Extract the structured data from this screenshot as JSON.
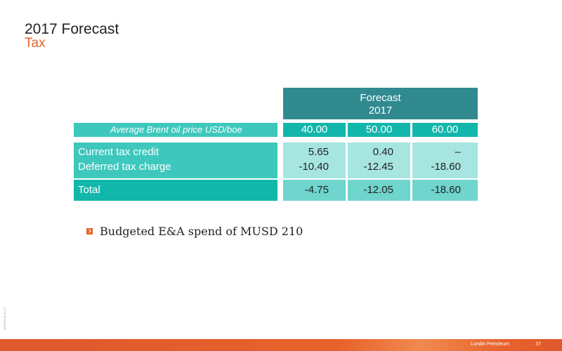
{
  "slide": {
    "title": "2017 Forecast",
    "subtitle": "Tax"
  },
  "table": {
    "header_line1": "Forecast",
    "header_line2": "2017",
    "price_label": "Average Brent oil price USD/boe",
    "prices": [
      "40.00",
      "50.00",
      "60.00"
    ],
    "rows": [
      {
        "label": "Current tax credit",
        "values": [
          "5.65",
          "0.40",
          "–"
        ]
      },
      {
        "label": "Deferred tax charge",
        "values": [
          "-10.40",
          "-12.45",
          "-18.60"
        ]
      }
    ],
    "total": {
      "label": "Total",
      "values": [
        "-4.75",
        "-12.05",
        "-18.60"
      ]
    }
  },
  "bullets": [
    "Budgeted E&A spend of MUSD 210"
  ],
  "footer": {
    "brand": "Lundin Petroleum",
    "page_number": "37",
    "side_code": "WR1284 p9 12.17"
  },
  "colors": {
    "accent": "#e8612c",
    "header_teal": "#308a8f",
    "label_teal": "#3ec8bd",
    "value_teal": "#13b6ab",
    "light_teal": "#a6e5e0"
  }
}
